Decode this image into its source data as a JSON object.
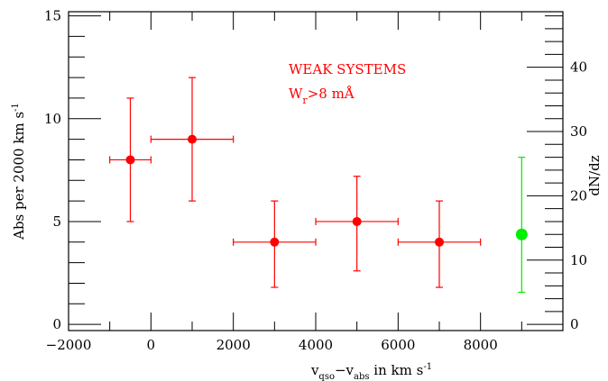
{
  "chart_data": {
    "type": "scatter",
    "title": "",
    "annotations": {
      "line1": "WEAK SYSTEMS",
      "line2_main": "W",
      "line2_sub": "r",
      "line2_rest": ">8 mÅ"
    },
    "xlabel": {
      "v1": "v",
      "sub1": "qso",
      "minus": "−v",
      "sub2": "abs",
      "rest": " in km s",
      "sup": "-1"
    },
    "ylabel": {
      "text": "Abs per 2000 km s",
      "sup": "-1"
    },
    "ylabel_right": "dN/dz",
    "xlim": [
      -2000,
      10000
    ],
    "ylim": [
      -0.3,
      15.2
    ],
    "xticks": [
      {
        "value": -2000,
        "label": "−2000"
      },
      {
        "value": 0,
        "label": "0"
      },
      {
        "value": 2000,
        "label": "2000"
      },
      {
        "value": 4000,
        "label": "4000"
      },
      {
        "value": 6000,
        "label": "6000"
      },
      {
        "value": 8000,
        "label": "8000"
      }
    ],
    "yticks": [
      {
        "value": 0,
        "label": "0"
      },
      {
        "value": 5,
        "label": "5"
      },
      {
        "value": 10,
        "label": "10"
      },
      {
        "value": 15,
        "label": "15"
      }
    ],
    "y2_scale_per_y": 3.2,
    "y2ticks": [
      {
        "value": 0,
        "label": "0"
      },
      {
        "value": 10,
        "label": "10"
      },
      {
        "value": 20,
        "label": "20"
      },
      {
        "value": 30,
        "label": "30"
      },
      {
        "value": 40,
        "label": "40"
      }
    ],
    "series": [
      {
        "color": "#ff0000",
        "points": [
          {
            "x": -500,
            "y": 8,
            "xerr": 500,
            "ylow": 5,
            "yhigh": 11
          },
          {
            "x": 1000,
            "y": 9,
            "xerr": 1000,
            "ylow": 6,
            "yhigh": 12
          },
          {
            "x": 3000,
            "y": 4,
            "xerr": 1000,
            "ylow": 1.8,
            "yhigh": 6
          },
          {
            "x": 5000,
            "y": 5,
            "xerr": 1000,
            "ylow": 2.6,
            "yhigh": 7.2
          },
          {
            "x": 7000,
            "y": 4,
            "xerr": 1000,
            "ylow": 1.8,
            "yhigh": 6
          }
        ]
      },
      {
        "color": "#00ee00",
        "axis": "right",
        "points": [
          {
            "x": 9000,
            "y": 14,
            "ylow": 5,
            "yhigh": 26
          }
        ]
      }
    ]
  }
}
